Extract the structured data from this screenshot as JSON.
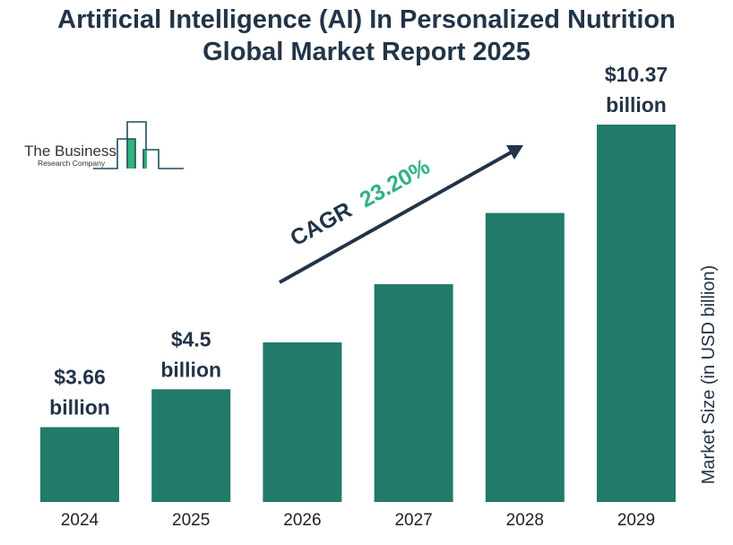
{
  "chart_data": {
    "type": "bar",
    "title": "Artificial Intelligence (AI) In Personalized Nutrition Global Market Report 2025",
    "title_lines": [
      "Artificial Intelligence (AI) In Personalized Nutrition",
      "Global Market Report 2025"
    ],
    "categories": [
      "2024",
      "2025",
      "2026",
      "2027",
      "2028",
      "2029"
    ],
    "values": [
      3.66,
      4.5,
      5.54,
      6.83,
      8.41,
      10.37
    ],
    "data_labels": [
      {
        "index": 0,
        "line1": "$3.66",
        "line2": "billion"
      },
      {
        "index": 1,
        "line1": "$4.5",
        "line2": "billion"
      },
      {
        "index": 5,
        "line1": "$10.37",
        "line2": "billion"
      }
    ],
    "ylabel": "Market Size (in USD billion)",
    "ylim": [
      2,
      10.37
    ],
    "grid": false,
    "bar_color": "#217a6a",
    "text_color": "#233447",
    "annotation": {
      "prefix": "CAGR",
      "value": "23.20%",
      "value_color": "#2fb37f"
    }
  },
  "logo": {
    "line1": "The Business",
    "line2": "Research Company"
  }
}
